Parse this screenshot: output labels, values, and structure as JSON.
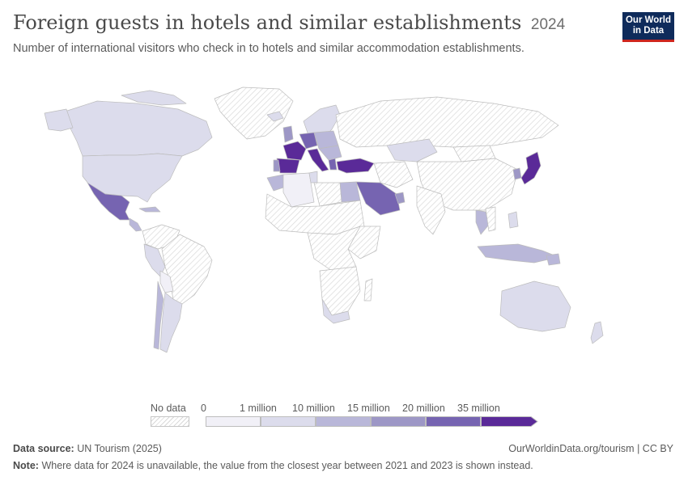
{
  "header": {
    "title": "Foreign guests in hotels and similar establishments",
    "year": "2024",
    "subtitle": "Number of international visitors who check in to hotels and similar accommodation establishments.",
    "logo_line1": "Our World",
    "logo_line2": "in Data"
  },
  "colors": {
    "no_data_hatch": "#d9d9d9",
    "bin0": "#f1f0f7",
    "bin1": "#dcdcec",
    "bin2": "#b9b7d9",
    "bin3": "#9d97c6",
    "bin4": "#7664b1",
    "bin5": "#5a2a98"
  },
  "legend": {
    "no_data_label": "No data",
    "ticks": [
      "0",
      "1 million",
      "10 million",
      "15 million",
      "20 million",
      "35 million"
    ]
  },
  "footer": {
    "source_label": "Data source:",
    "source_text": "UN Tourism (2025)",
    "note_label": "Note:",
    "note_text": "Where data for 2024 is unavailable, the value from the closest year between 2021 and 2023 is shown instead.",
    "url_text": "OurWorldinData.org/tourism | CC BY"
  }
}
